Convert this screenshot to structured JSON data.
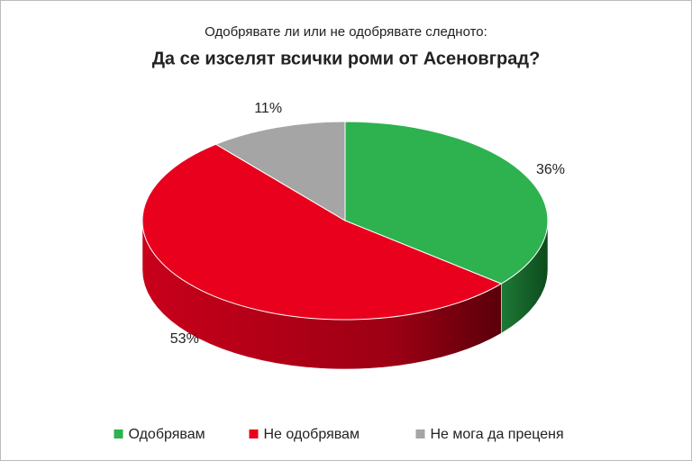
{
  "chart_data": {
    "type": "pie3d",
    "subtitle": "Одобрявате ли или не одобрявате следното:",
    "title": "Да се изселят всички роми от Асеновград?",
    "categories": [
      "Одобрявам",
      "Не одобрявам",
      "Не мога да преценя"
    ],
    "values": [
      36,
      53,
      11
    ],
    "value_labels": [
      "36%",
      "53%",
      "11%"
    ],
    "colors": [
      "#2db24f",
      "#e8001c",
      "#a5a5a5"
    ],
    "legend": "bottom"
  }
}
